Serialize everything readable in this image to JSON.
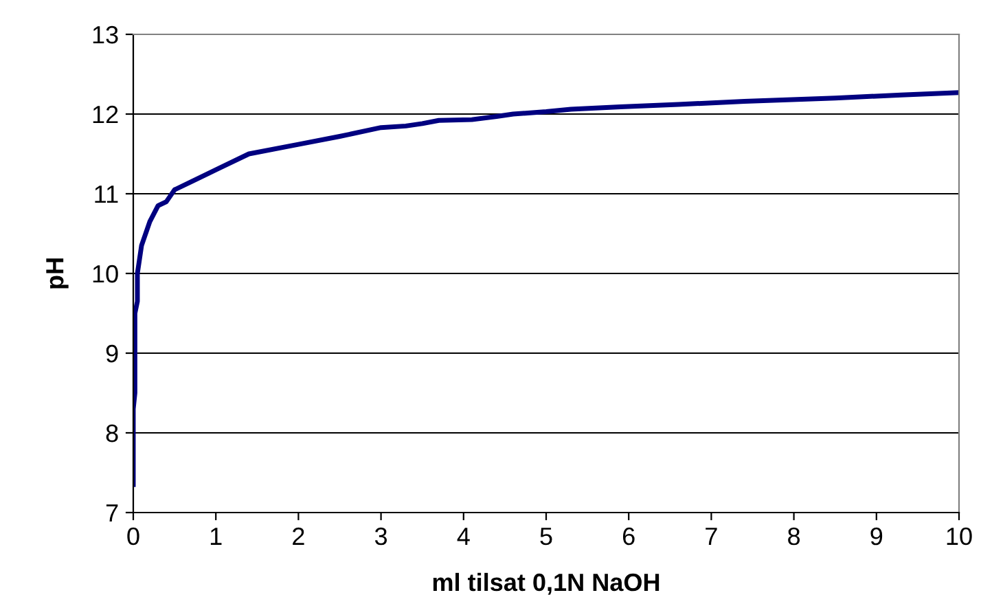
{
  "chart_data": {
    "type": "line",
    "xlabel": "ml tilsat 0,1N NaOH",
    "ylabel": "pH",
    "series": [
      {
        "color": "#000080",
        "x": [
          0,
          0,
          0.02,
          0.02,
          0.05,
          0.05,
          0.1,
          0.2,
          0.3,
          0.4,
          0.5,
          0.7,
          1.0,
          1.4,
          2.0,
          2.5,
          3.0,
          3.3,
          3.5,
          3.7,
          4.1,
          4.4,
          4.6,
          5.0,
          5.3,
          5.9,
          6.6,
          7.4,
          8.5,
          9.3,
          10
        ],
        "values": [
          7.35,
          8.3,
          8.5,
          9.5,
          9.65,
          10.0,
          10.35,
          10.65,
          10.85,
          10.9,
          11.05,
          11.15,
          11.3,
          11.5,
          11.62,
          11.72,
          11.83,
          11.85,
          11.88,
          11.92,
          11.93,
          11.97,
          12.0,
          12.03,
          12.06,
          12.09,
          12.12,
          12.16,
          12.2,
          12.24,
          12.27
        ]
      }
    ],
    "xlim": [
      0,
      10
    ],
    "xticks": [
      0,
      1,
      2,
      3,
      4,
      5,
      6,
      7,
      8,
      9,
      10
    ],
    "ylim": [
      7,
      13
    ],
    "yticks": [
      7,
      8,
      9,
      10,
      11,
      12,
      13
    ],
    "grid": "y",
    "marker": "none",
    "line_style": "solid"
  }
}
